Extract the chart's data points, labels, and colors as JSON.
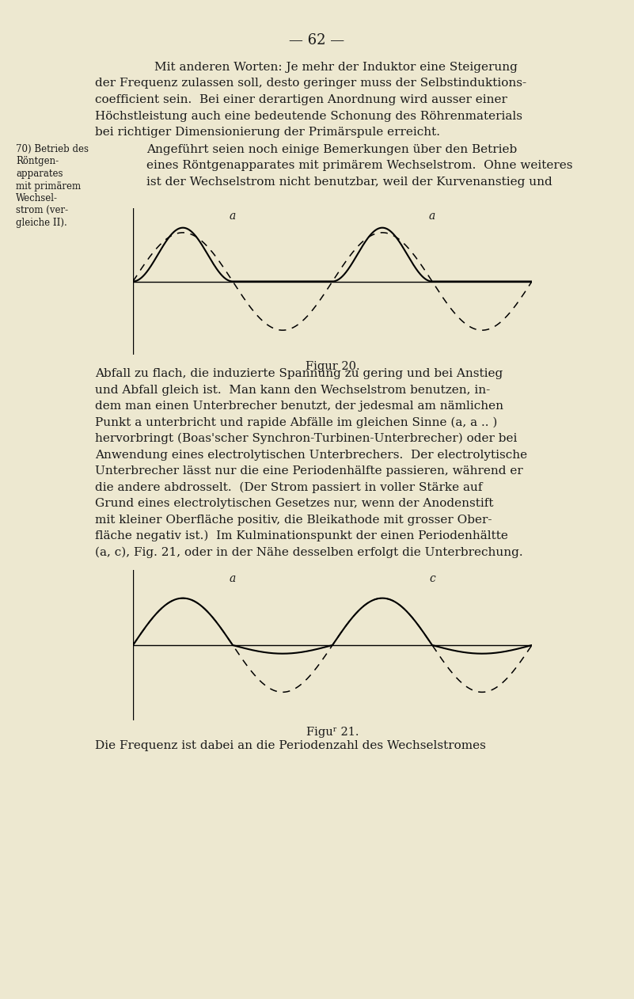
{
  "bg_color": "#ede8d0",
  "text_color": "#1a1a1a",
  "page_number": "— 62 —",
  "fig20_caption": "Figur 20.",
  "fig21_caption": "Figuʳ 21.",
  "para4": "Die Frequenz ist dabei an die Periodenzahl des Wechselstromes",
  "footnote_lines": [
    "70) Betrieb des",
    "Röntgen-",
    "apparates",
    "mit primärem",
    "Wechsel-",
    "strom (ver-",
    "gleiche II)."
  ],
  "para1_lines": [
    "Mit anderen Worten: Je mehr der Induktor eine Steigerung",
    "der Frequenz zulassen soll, desto geringer muss der Selbstinduktions-",
    "coefficient sein.  Bei einer derartigen Anordnung wird ausser einer",
    "Höchstleistung auch eine bedeutende Schonung des Röhrenmaterials",
    "bei richtiger Dimensionierung der Primärspule erreicht."
  ],
  "para2_lines": [
    "Angeführt seien noch einige Bemerkungen über den Betrieb",
    "eines Röntgenapparates mit primärem Wechselstrom.  Ohne weiteres",
    "ist der Wechselstrom nicht benutzbar, weil der Kurvenanstieg und"
  ],
  "para3_lines": [
    "Abfall zu flach, die induzierte Spannung zu gering und bei Anstieg",
    "und Abfall gleich ist.  Man kann den Wechselstrom benutzen, in-",
    "dem man einen Unterbrecher benutzt, der jedesmal am nämlichen",
    "Punkt a unterbricht und rapide Abfälle im gleichen Sinne (a, a .. )",
    "hervorbringt (Boas'scher Synchron-Turbinen-Unterbrecher) oder bei",
    "Anwendung eines electrolytischen Unterbrechers.  Der electrolytische",
    "Unterbrecher lässt nur die eine Periodenhälfte passieren, während er",
    "die andere abdrosselt.  (Der Strom passiert in voller Stärke auf",
    "Grund eines electrolytischen Gesetzes nur, wenn der Anodenstift",
    "mit kleiner Oberfläche positiv, die Bleikathode mit grosser Ober-",
    "fläche negativ ist.)  Im Kulminationspunkt der einen Periodenhältte",
    "(a, c), Fig. 21, oder in der Nähe desselben erfolgt die Unterbrechung."
  ]
}
